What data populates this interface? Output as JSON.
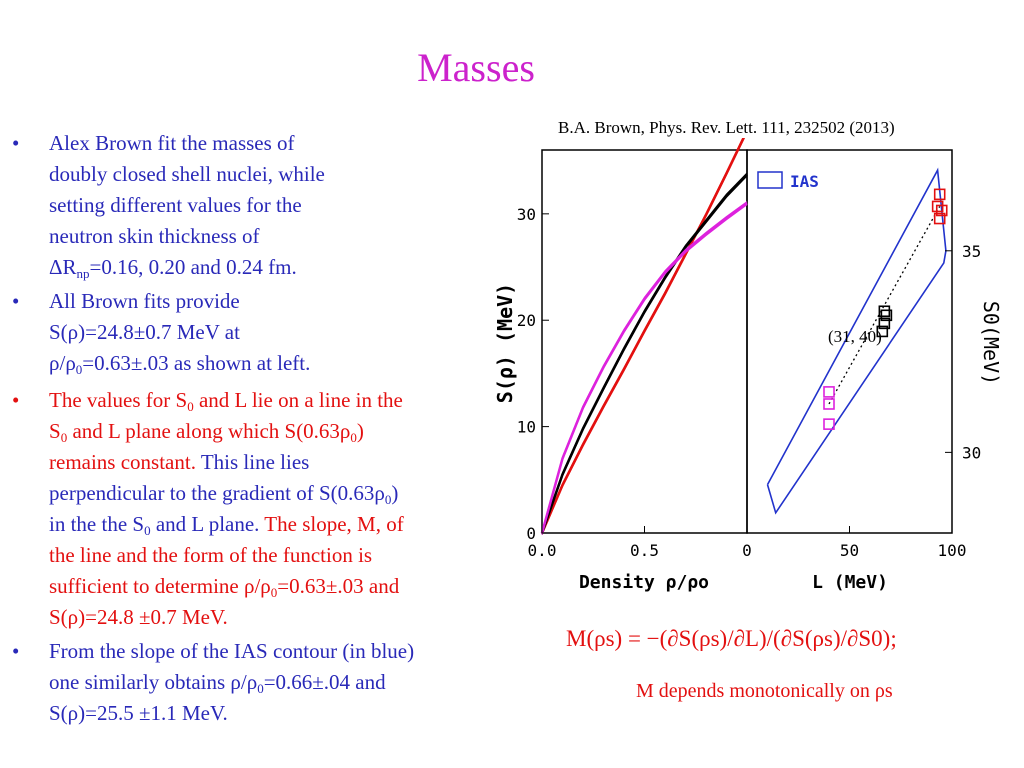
{
  "slide": {
    "title": "Masses",
    "citation": "B.A. Brown, Phys. Rev. Lett. 111, 232502 (2013)"
  },
  "bullets": {
    "b1": {
      "l1": "Alex Brown fit the masses of",
      "l2": "doubly closed shell nuclei, while",
      "l3": "setting different values for the",
      "l4": "neutron skin thickness of",
      "l5a": "ΔR",
      "l5sub": "np",
      "l5b": "=0.16, 0.20 and 0.24 fm."
    },
    "b2": {
      "l1": "All Brown fits provide",
      "l2": "S(ρ)=24.8±0.7 MeV at",
      "l3a": "ρ/ρ",
      "l3sub": "0",
      "l3b": "=0.63±.03 as shown at left."
    },
    "b3": {
      "l1a": "The values for S",
      "l1sub": "0",
      "l1b": " and L lie on a line in the",
      "l2a": "S",
      "l2sub": "0",
      "l2b": " and L plane along which S(0.63ρ",
      "l2sub2": "0",
      "l2c": ")",
      "l3a": "remains constant. ",
      "l3b": "This line lies",
      "l4a": "perpendicular to the gradient of S(0.63ρ",
      "l4sub": "0",
      "l4b": ")",
      "l5a": "in the the S",
      "l5sub": "0",
      "l5b": " and L plane. ",
      "l5c": "The slope, M,  of",
      "l6": "the line and the form of the function is",
      "l7a": "sufficient to determine ρ/ρ",
      "l7sub": "0",
      "l7b": "=0.63±.03  and",
      "l8": "S(ρ)=24.8 ±0.7 MeV."
    },
    "b4": {
      "l1": "From the slope of the IAS contour (in blue)",
      "l2a": "one similarly obtains ρ/ρ",
      "l2sub": "0",
      "l2b": "=0.66±.04  and",
      "l3": "S(ρ)=25.5 ±1.1 MeV."
    },
    "marker": "•"
  },
  "figure": {
    "left_panel": {
      "ylabel": "S(ρ) (MeV)",
      "xlabel": "Density ρ/ρo",
      "x_ticks": [
        "0.0",
        "0.5"
      ],
      "y_ticks": [
        "0",
        "10",
        "20",
        "30"
      ]
    },
    "right_panel": {
      "xlabel": "L (MeV)",
      "ylabel": "S0(MeV)",
      "x_ticks": [
        "0",
        "50",
        "100"
      ],
      "y_ticks": [
        "30",
        "35"
      ],
      "legend": "IAS",
      "annotation": "(31, 40)"
    },
    "colors": {
      "red": "#e31010",
      "black": "#000000",
      "magenta": "#dd22dd",
      "blue": "#2233cc"
    }
  },
  "chart_data": [
    {
      "type": "line",
      "title": "",
      "xlabel": "Density ρ/ρo",
      "ylabel": "S(ρ) (MeV)",
      "xlim": [
        0.0,
        1.0
      ],
      "ylim": [
        0,
        36
      ],
      "x": [
        0.0,
        0.1,
        0.2,
        0.3,
        0.4,
        0.5,
        0.6,
        0.7,
        0.8,
        0.9,
        1.0
      ],
      "series": [
        {
          "color": "red",
          "values": [
            0,
            4.5,
            8.3,
            11.9,
            15.4,
            19.0,
            22.5,
            26.2,
            29.9,
            33.8,
            37.8
          ]
        },
        {
          "color": "black",
          "values": [
            0,
            5.5,
            9.8,
            13.6,
            17.3,
            20.8,
            24.0,
            26.9,
            29.3,
            31.7,
            33.7
          ]
        },
        {
          "color": "magenta",
          "values": [
            0,
            7.0,
            11.8,
            15.6,
            19.0,
            22.0,
            24.5,
            26.5,
            28.1,
            29.6,
            31.0
          ]
        }
      ]
    },
    {
      "type": "scatter",
      "title": "",
      "xlabel": "L (MeV)",
      "ylabel": "S0(MeV)",
      "xlim": [
        0,
        100
      ],
      "ylim": [
        28,
        37.5
      ],
      "series": [
        {
          "color": "red",
          "points": [
            [
              94,
              36.4
            ],
            [
              93,
              36.1
            ],
            [
              95,
              36.0
            ],
            [
              94,
              35.8
            ]
          ]
        },
        {
          "color": "black",
          "points": [
            [
              67,
              33.5
            ],
            [
              68,
              33.4
            ],
            [
              67,
              33.2
            ],
            [
              66,
              33.0
            ]
          ]
        },
        {
          "color": "magenta",
          "points": [
            [
              40,
              31.5
            ],
            [
              40,
              31.2
            ],
            [
              40,
              30.7
            ]
          ]
        }
      ],
      "contour": [
        [
          10,
          29.2
        ],
        [
          93,
          37.0
        ],
        [
          97,
          35.0
        ],
        [
          96,
          34.7
        ],
        [
          14,
          28.5
        ],
        [
          10,
          29.2
        ]
      ],
      "dotted_line": [
        [
          40,
          31.2
        ],
        [
          94,
          36.1
        ]
      ]
    }
  ],
  "formula": {
    "text": "M(ρs) = −(∂S(ρs)/∂L)/(∂S(ρs)/∂S0);",
    "note": "M depends monotonically on ρs"
  }
}
